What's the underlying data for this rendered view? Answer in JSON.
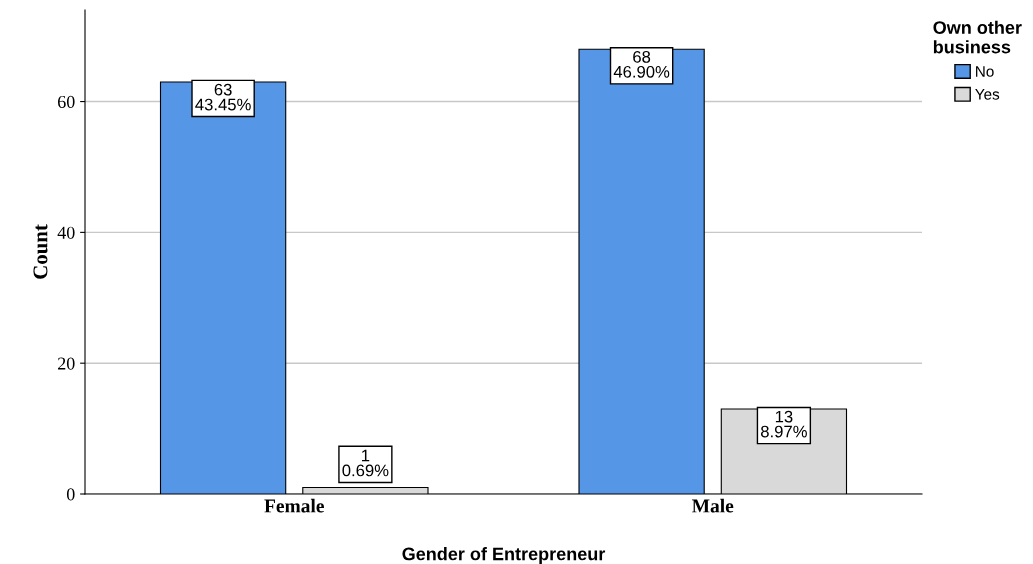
{
  "chart_data": {
    "type": "bar",
    "categories": [
      "Female",
      "Male"
    ],
    "xlabel": "Gender of Entrepreneur",
    "ylabel": "Count",
    "legend_title": "Own other\nbusiness",
    "series": [
      {
        "name": "No",
        "color": "#5596e6",
        "values": [
          63,
          68
        ],
        "value_labels": [
          "63\n43.45%",
          "68\n46.90%"
        ]
      },
      {
        "name": "Yes",
        "color": "#d9d9d9",
        "values": [
          1,
          13
        ],
        "value_labels": [
          "1\n0.69%",
          "13\n8.97%"
        ]
      }
    ],
    "ylim": [
      0,
      74
    ],
    "yticks": [
      0,
      20,
      40,
      60
    ],
    "grid": "y",
    "legend": "top right"
  }
}
